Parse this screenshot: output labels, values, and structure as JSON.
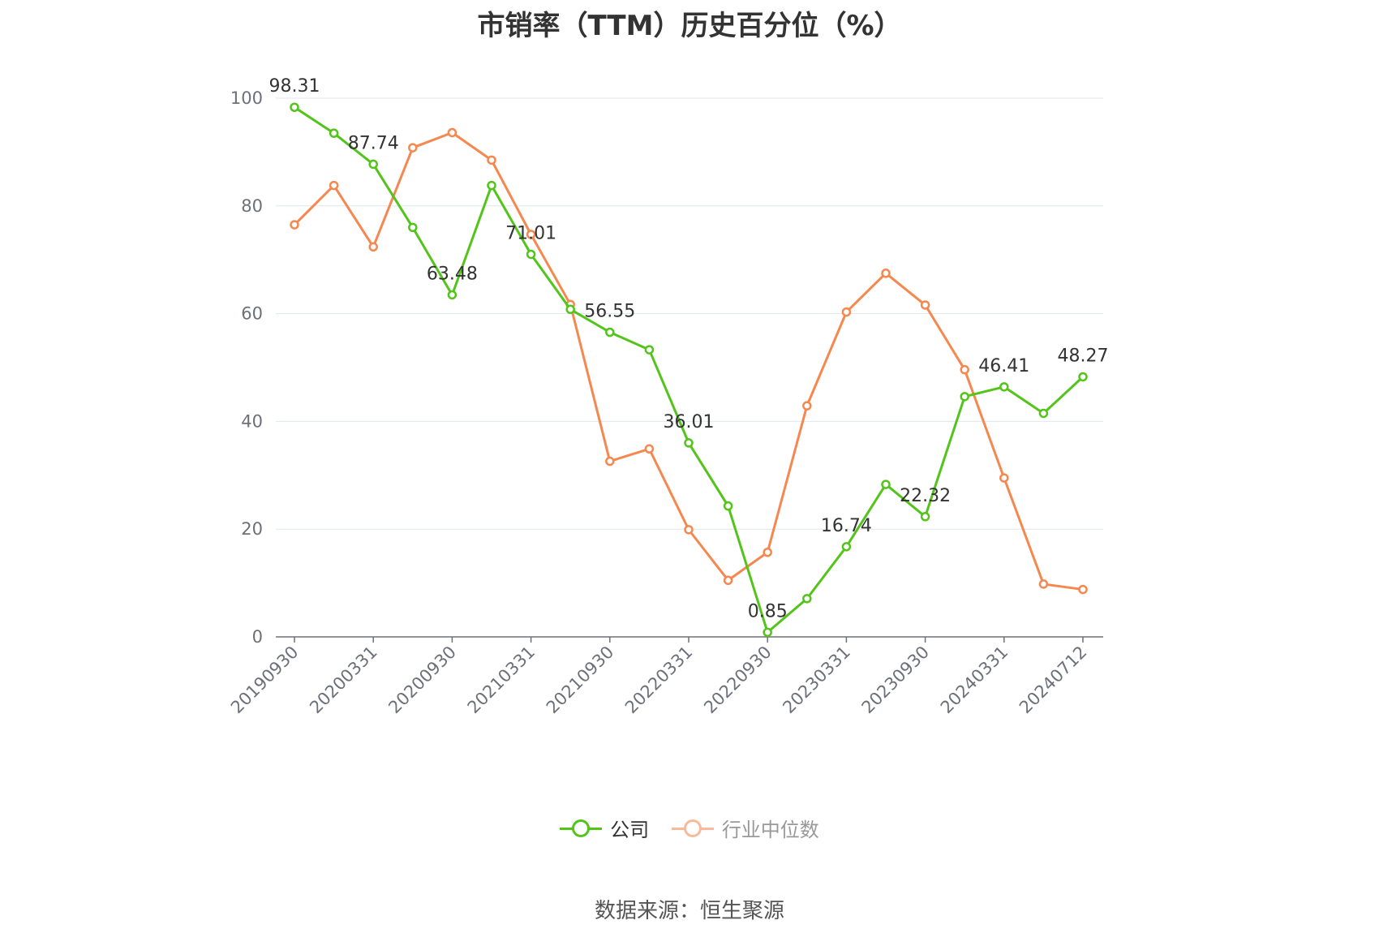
{
  "chart_data": {
    "type": "line",
    "title": "市销率（TTM）历史百分位（%）",
    "xlabel": "",
    "ylabel": "",
    "ylim": [
      0,
      100
    ],
    "y_ticks": [
      "0",
      "20",
      "40",
      "60",
      "80",
      "100"
    ],
    "x": [
      "20190930",
      "20191231",
      "20200331",
      "20200630",
      "20200930",
      "20201231",
      "20210331",
      "20210630",
      "20210930",
      "20211231",
      "20220331",
      "20220630",
      "20220930",
      "20221231",
      "20230331",
      "20230630",
      "20230930",
      "20231231",
      "20240331",
      "20240630",
      "20240712"
    ],
    "x_tick_labels": [
      "20190930",
      "20200331",
      "20200930",
      "20210331",
      "20210930",
      "20220331",
      "20220930",
      "20230331",
      "20230930",
      "20240331",
      "20240712"
    ],
    "grid": true,
    "legend_position": "bottom",
    "series": [
      {
        "name": "公司",
        "color": "#52c41a",
        "values": [
          98.31,
          93.5,
          87.74,
          76.0,
          63.48,
          83.8,
          71.01,
          60.8,
          56.55,
          53.3,
          36.01,
          24.3,
          0.85,
          7.1,
          16.74,
          28.3,
          22.32,
          44.6,
          46.41,
          41.5,
          48.27
        ],
        "labels": [
          "98.31",
          "",
          "87.74",
          "",
          "63.48",
          "",
          "71.01",
          "",
          "56.55",
          "",
          "36.01",
          "",
          "0.85",
          "",
          "16.74",
          "",
          "22.32",
          "",
          "46.41",
          "",
          "48.27"
        ]
      },
      {
        "name": "行业中位数",
        "color": "#f5874f",
        "values": [
          76.5,
          83.8,
          72.4,
          90.8,
          93.6,
          88.5,
          74.7,
          61.7,
          32.6,
          34.9,
          19.9,
          10.5,
          15.7,
          42.9,
          60.3,
          67.5,
          61.6,
          49.6,
          29.5,
          9.8,
          8.8
        ]
      }
    ]
  },
  "legend": {
    "company_label": "公司",
    "industry_label": "行业中位数"
  },
  "source": "数据来源：恒生聚源"
}
